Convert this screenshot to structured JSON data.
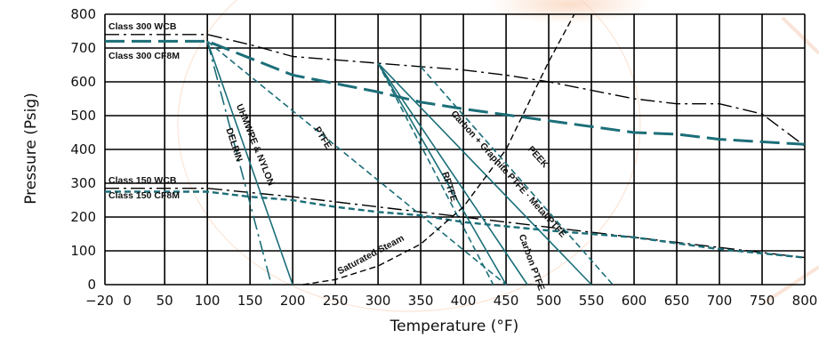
{
  "chart_data": {
    "type": "line",
    "xlabel": "Temperature (°F)",
    "ylabel": "Pressure (Psig)",
    "xlim": [
      -20,
      800
    ],
    "ylim": [
      0,
      800
    ],
    "x_ticks": [
      -20,
      0,
      50,
      100,
      150,
      200,
      250,
      300,
      350,
      400,
      450,
      500,
      550,
      600,
      650,
      700,
      750,
      800
    ],
    "x_tick_labels": [
      "−20",
      "0",
      "50",
      "100",
      "150",
      "200",
      "250",
      "300",
      "350",
      "400",
      "450",
      "500",
      "550",
      "600",
      "650",
      "700",
      "750",
      "800"
    ],
    "y_ticks": [
      0,
      100,
      200,
      300,
      400,
      500,
      600,
      700,
      800
    ],
    "grid": true,
    "series": [
      {
        "name": "Class 300 WCB",
        "color": "#000000",
        "style": "dash-dot",
        "points": [
          [
            -20,
            740
          ],
          [
            100,
            740
          ],
          [
            150,
            710
          ],
          [
            200,
            675
          ],
          [
            300,
            655
          ],
          [
            350,
            645
          ],
          [
            400,
            635
          ],
          [
            450,
            620
          ],
          [
            500,
            600
          ],
          [
            600,
            550
          ],
          [
            650,
            535
          ],
          [
            700,
            535
          ],
          [
            750,
            505
          ],
          [
            800,
            410
          ]
        ]
      },
      {
        "name": "Class 300 CF8M",
        "color": "#1b6e78",
        "style": "long-dash",
        "points": [
          [
            -20,
            720
          ],
          [
            100,
            720
          ],
          [
            200,
            620
          ],
          [
            250,
            595
          ],
          [
            300,
            570
          ],
          [
            350,
            540
          ],
          [
            400,
            520
          ],
          [
            500,
            485
          ],
          [
            600,
            450
          ],
          [
            650,
            445
          ],
          [
            700,
            430
          ],
          [
            800,
            415
          ]
        ]
      },
      {
        "name": "Class 150 WCB",
        "color": "#000000",
        "style": "dash-dot",
        "points": [
          [
            -20,
            285
          ],
          [
            100,
            285
          ],
          [
            200,
            260
          ],
          [
            300,
            230
          ],
          [
            400,
            200
          ],
          [
            500,
            170
          ],
          [
            600,
            140
          ],
          [
            700,
            110
          ],
          [
            750,
            95
          ],
          [
            800,
            80
          ]
        ]
      },
      {
        "name": "Class 150 CF8M",
        "color": "#1b6e78",
        "style": "dash",
        "points": [
          [
            -20,
            275
          ],
          [
            100,
            275
          ],
          [
            150,
            260
          ],
          [
            200,
            250
          ],
          [
            250,
            230
          ],
          [
            300,
            215
          ],
          [
            350,
            205
          ],
          [
            400,
            185
          ],
          [
            500,
            160
          ],
          [
            600,
            140
          ],
          [
            700,
            105
          ],
          [
            800,
            80
          ]
        ]
      },
      {
        "name": "DELRIN",
        "color": "#1b6e78",
        "style": "dash-dot",
        "points": [
          [
            100,
            720
          ],
          [
            175,
            0
          ]
        ]
      },
      {
        "name": "UHMWPE & NYLON",
        "color": "#1b6e78",
        "style": "solid",
        "points": [
          [
            100,
            720
          ],
          [
            200,
            0
          ]
        ]
      },
      {
        "name": "PTFE",
        "color": "#1b6e78",
        "style": "dash",
        "points": [
          [
            100,
            720
          ],
          [
            450,
            0
          ]
        ]
      },
      {
        "name": "RPTFE",
        "color": "#1b6e78",
        "style": "solid",
        "points": [
          [
            300,
            655
          ],
          [
            450,
            0
          ]
        ]
      },
      {
        "name": "Carbon PTFE",
        "color": "#1b6e78",
        "style": "solid",
        "points": [
          [
            300,
            655
          ],
          [
            475,
            0
          ]
        ]
      },
      {
        "name": "Carbon + Graphite PTFE · Metal/PTFE",
        "color": "#1b6e78",
        "style": "solid",
        "points": [
          [
            300,
            655
          ],
          [
            550,
            0
          ]
        ]
      },
      {
        "name": "RPTFE",
        "color": "#1b6e78",
        "style": "dash",
        "points": [
          [
            300,
            655
          ],
          [
            435,
            0
          ]
        ]
      },
      {
        "name": "PEEK",
        "color": "#1b6e78",
        "style": "dash",
        "points": [
          [
            350,
            645
          ],
          [
            575,
            0
          ]
        ]
      },
      {
        "name": "Saturated Steam",
        "color": "#000000",
        "style": "dash",
        "points": [
          [
            212,
            0
          ],
          [
            250,
            15
          ],
          [
            300,
            55
          ],
          [
            350,
            120
          ],
          [
            400,
            230
          ],
          [
            450,
            400
          ],
          [
            500,
            660
          ],
          [
            530,
            800
          ]
        ]
      }
    ],
    "series_labels": [
      {
        "text": "Class 300 WCB",
        "at": [
          -20,
          755
        ]
      },
      {
        "text": "Class 300 CF8M",
        "at": [
          -20,
          668
        ]
      },
      {
        "text": "Class 150 WCB",
        "at": [
          -20,
          300
        ]
      },
      {
        "text": "Class 150 CF8M",
        "at": [
          -20,
          255
        ]
      },
      {
        "text": "DELRIN",
        "at": [
          122,
          460
        ],
        "rotate": 72
      },
      {
        "text": "UHMWPE & NYLON",
        "at": [
          134,
          530
        ],
        "rotate": 68
      },
      {
        "text": "PTFE",
        "at": [
          225,
          460
        ],
        "rotate": 58
      },
      {
        "text": "RPTFE",
        "at": [
          375,
          330
        ],
        "rotate": 72
      },
      {
        "text": "Carbon + Graphite PTFE · Metal/PTFE",
        "at": [
          385,
          505
        ],
        "rotate": 48
      },
      {
        "text": "PEEK",
        "at": [
          475,
          400
        ],
        "rotate": 48
      },
      {
        "text": "Carbon PTFE",
        "at": [
          465,
          145
        ],
        "rotate": 70
      },
      {
        "text": "Saturated Steam",
        "at": [
          255,
          30
        ],
        "rotate": -28
      }
    ]
  }
}
